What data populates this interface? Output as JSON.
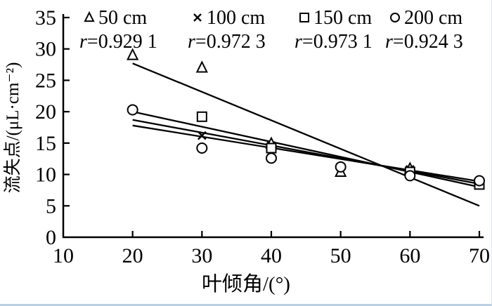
{
  "figure": {
    "background": "#ffffff",
    "bottom_strip_color": "#b9cfe6",
    "ink_color": "#000000"
  },
  "chart_data": {
    "type": "scatter",
    "title": "",
    "xlabel": "叶倾角/(°)",
    "ylabel": "流失点/(μL·cm⁻²)",
    "xlim": [
      10,
      70
    ],
    "ylim": [
      0,
      35
    ],
    "x_ticks": [
      "10",
      "20",
      "30",
      "40",
      "50",
      "60",
      "70"
    ],
    "y_ticks": [
      "0",
      "5",
      "10",
      "15",
      "20",
      "25",
      "30",
      "35"
    ],
    "grid": false,
    "legend_position": "top-inside",
    "marker_fill": "#ffffff",
    "line_color": "#000000",
    "series": [
      {
        "name": "50 cm",
        "marker": "triangle",
        "r_label": "r=0.929 1",
        "points": [
          [
            20,
            29
          ],
          [
            30,
            27
          ],
          [
            40,
            14.9
          ],
          [
            50,
            10.4
          ],
          [
            60,
            10.9
          ]
        ],
        "trend": [
          [
            20,
            27.7
          ],
          [
            70,
            5.0
          ]
        ]
      },
      {
        "name": "100 cm",
        "marker": "cross",
        "r_label": "r=0.972 3",
        "points": [
          [
            30,
            16.2
          ],
          [
            40,
            14.6
          ],
          [
            60,
            10.8
          ],
          [
            70,
            8.3
          ]
        ],
        "trend": [
          [
            20,
            17.8
          ],
          [
            70,
            8.9
          ]
        ]
      },
      {
        "name": "150 cm",
        "marker": "square",
        "r_label": "r=0.973 1",
        "points": [
          [
            30,
            19.2
          ],
          [
            40,
            14.2
          ],
          [
            60,
            10.4
          ],
          [
            70,
            8.4
          ]
        ],
        "trend": [
          [
            20,
            18.7
          ],
          [
            70,
            8.5
          ]
        ]
      },
      {
        "name": "200 cm",
        "marker": "circle",
        "r_label": "r=0.924 3",
        "points": [
          [
            20,
            20.3
          ],
          [
            30,
            14.2
          ],
          [
            40,
            12.6
          ],
          [
            50,
            11.2
          ],
          [
            60,
            9.8
          ],
          [
            70,
            9.0
          ]
        ],
        "trend": [
          [
            20,
            20.0
          ],
          [
            70,
            8.0
          ]
        ]
      }
    ]
  }
}
